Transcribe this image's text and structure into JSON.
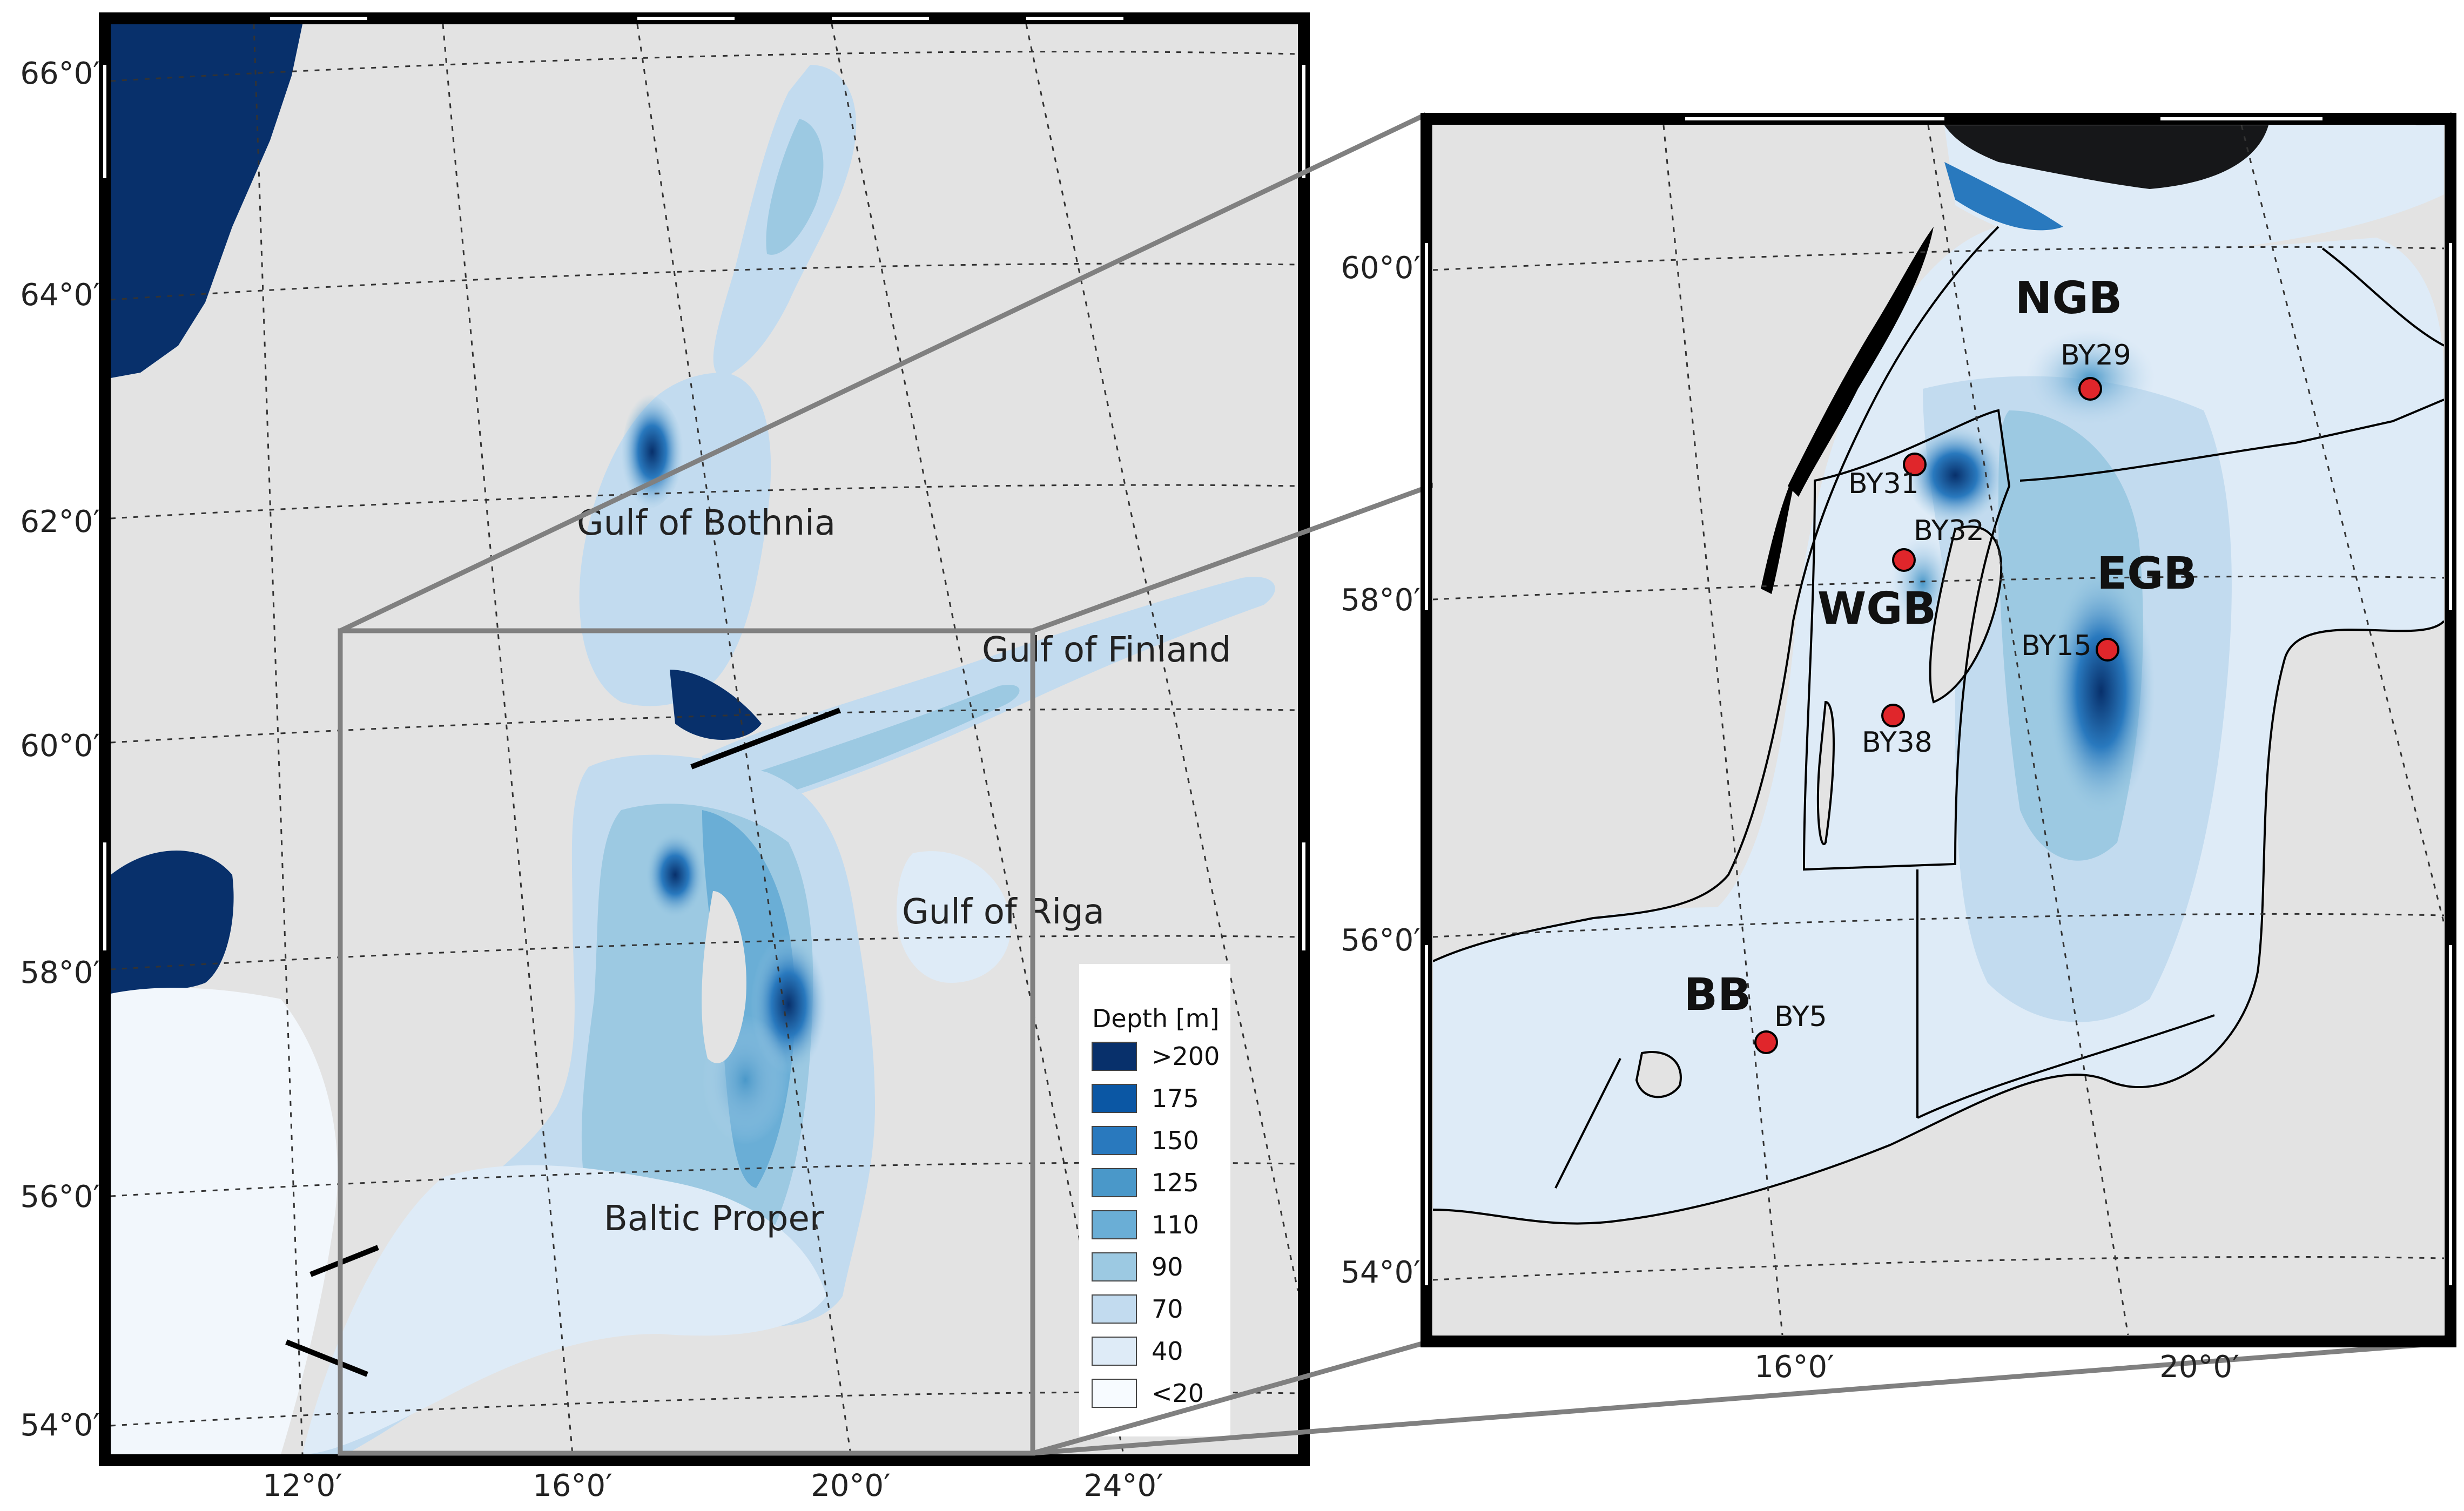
{
  "colors": {
    "land": "#e3e3e3",
    "deep": "#08306b",
    "station": "#e0262b",
    "frame": "#000000",
    "inset_box": "#808080"
  },
  "left_map": {
    "lat_labels": [
      "66°0′",
      "64°0′",
      "62°0′",
      "60°0′",
      "58°0′",
      "56°0′",
      "54°0′"
    ],
    "lon_labels": [
      "12°0′",
      "16°0′",
      "20°0′",
      "24°0′"
    ],
    "regions": [
      {
        "id": "gulf-of-bothnia",
        "text": "Gulf of Bothnia"
      },
      {
        "id": "gulf-of-finland",
        "text": "Gulf of Finland"
      },
      {
        "id": "gulf-of-riga",
        "text": "Gulf of Riga"
      },
      {
        "id": "baltic-proper",
        "text": "Baltic Proper"
      }
    ]
  },
  "right_map": {
    "lat_labels": [
      "60°0′",
      "58°0′",
      "56°0′",
      "54°0′"
    ],
    "lon_labels": [
      "16°0′",
      "20°0′"
    ],
    "zones": [
      {
        "id": "ngb",
        "text": "NGB"
      },
      {
        "id": "wgb",
        "text": "WGB"
      },
      {
        "id": "egb",
        "text": "EGB"
      },
      {
        "id": "bb",
        "text": "BB"
      }
    ],
    "stations": [
      {
        "id": "by29",
        "text": "BY29"
      },
      {
        "id": "by31",
        "text": "BY31"
      },
      {
        "id": "by32",
        "text": "BY32"
      },
      {
        "id": "by15",
        "text": "BY15"
      },
      {
        "id": "by38",
        "text": "BY38"
      },
      {
        "id": "by5",
        "text": "BY5"
      }
    ]
  },
  "legend": {
    "title": "Depth [m]",
    "items": [
      {
        "label": ">200",
        "color": "#08306b"
      },
      {
        "label": "175",
        "color": "#0b57a4"
      },
      {
        "label": "150",
        "color": "#2979be"
      },
      {
        "label": "125",
        "color": "#4a98c9"
      },
      {
        "label": "110",
        "color": "#6aaed6"
      },
      {
        "label": "90",
        "color": "#9cc9e2"
      },
      {
        "label": "70",
        "color": "#c2dbef"
      },
      {
        "label": "40",
        "color": "#deebf7"
      },
      {
        "label": "<20",
        "color": "#f7fbff"
      }
    ]
  }
}
